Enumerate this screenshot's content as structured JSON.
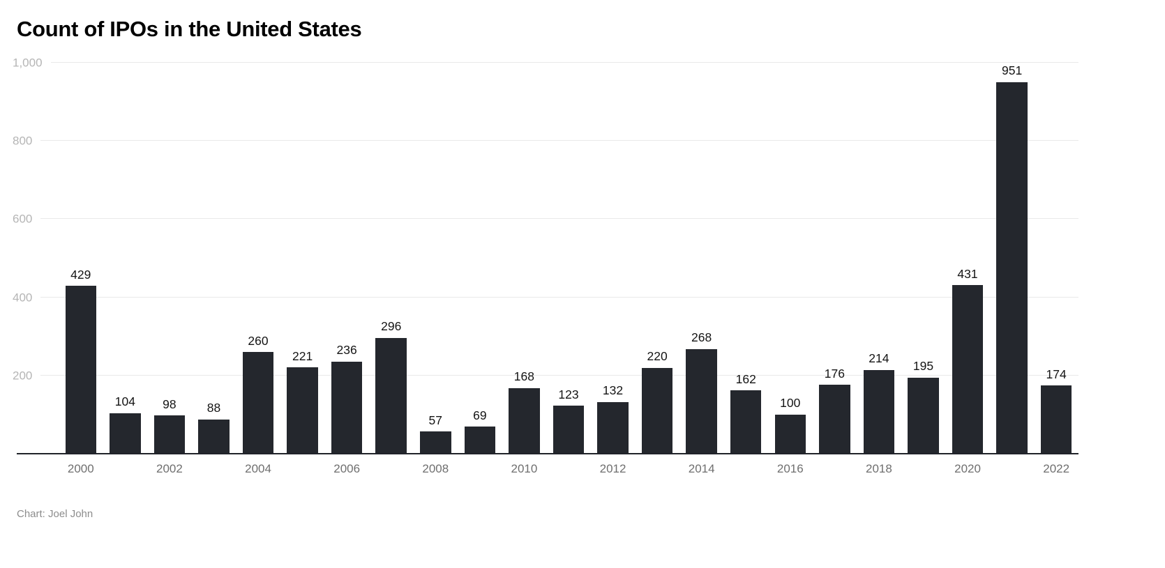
{
  "page": {
    "title": "Count of IPOs in the United States",
    "footer": "Chart: Joel John"
  },
  "chart_data": {
    "type": "bar",
    "title": "Count of IPOs in the United States",
    "xlabel": "",
    "ylabel": "",
    "categories": [
      "2000",
      "2001",
      "2002",
      "2003",
      "2004",
      "2005",
      "2006",
      "2007",
      "2008",
      "2009",
      "2010",
      "2011",
      "2012",
      "2013",
      "2014",
      "2015",
      "2016",
      "2017",
      "2018",
      "2019",
      "2020",
      "2021",
      "2022"
    ],
    "values": [
      429,
      104,
      98,
      88,
      260,
      221,
      236,
      296,
      57,
      69,
      168,
      123,
      132,
      220,
      268,
      162,
      100,
      176,
      214,
      195,
      431,
      951,
      174
    ],
    "x_tick_labels": [
      "2000",
      "2002",
      "2004",
      "2006",
      "2008",
      "2010",
      "2012",
      "2014",
      "2016",
      "2018",
      "2020",
      "2022"
    ],
    "y_ticks": [
      200,
      400,
      600,
      800,
      1000
    ],
    "y_tick_labels": [
      "200",
      "400",
      "600",
      "800",
      "1,000"
    ],
    "ylim": [
      0,
      1000
    ],
    "grid": true,
    "legend": false,
    "value_labels": true,
    "bar_color": "#24272d",
    "attribution": "Chart: Joel John"
  }
}
